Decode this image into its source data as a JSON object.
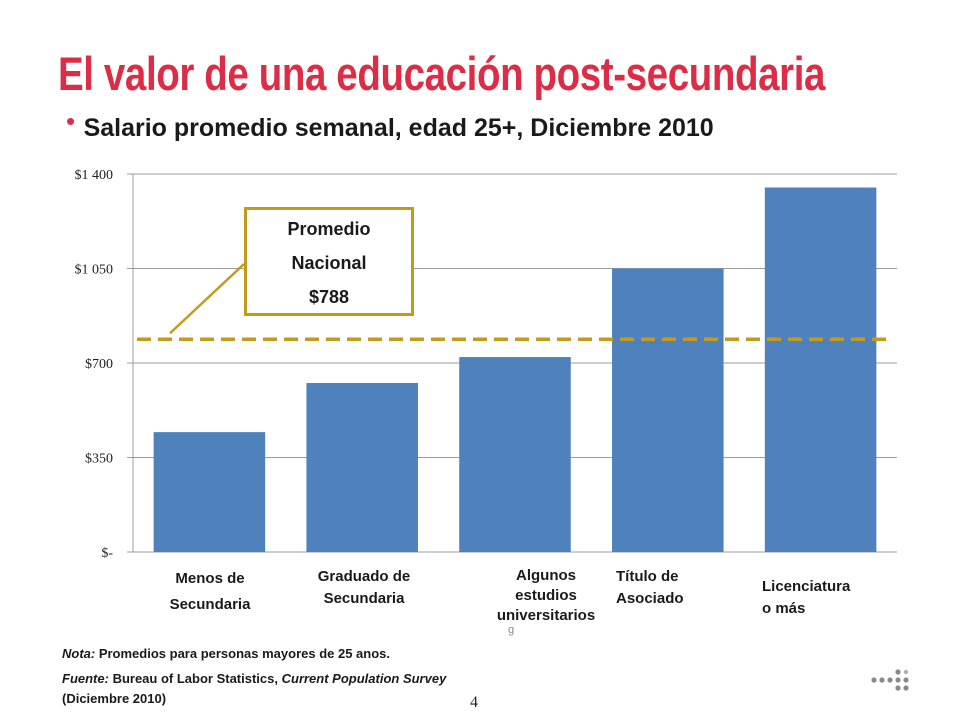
{
  "slide": {
    "title": "El valor de una educación post-secundaria",
    "subtitle": "Salario promedio semanal, edad 25+, Diciembre 2010",
    "note_prefix": "Nota:",
    "note_text": "  Promedios para  personas mayores de 25 anos.",
    "source_prefix": "Fuente:",
    "source_text_1": " Bureau of Labor Statistics, ",
    "source_italic": "Current Population Survey",
    "source_text_2": "(Diciembre 2010)",
    "page_number": "4",
    "stray_mark": "g"
  },
  "callout": {
    "line1": "Promedio",
    "line2": "Nacional",
    "line3": "$788"
  },
  "chart_data": {
    "type": "bar",
    "title": "",
    "xlabel": "",
    "ylabel": "",
    "categories": [
      "Menos de\nSecundaria",
      "Graduado de\nSecundaria",
      "Algunos\nestudios\nuniversitarios",
      "Título de\nAsociado",
      "Licenciatura\no más"
    ],
    "values": [
      444,
      626,
      722,
      1050,
      1350
    ],
    "ylim": [
      0,
      1400
    ],
    "yticks": [
      0,
      350,
      700,
      1050,
      1400
    ],
    "ytick_labels": [
      "$-",
      "$350",
      "$700",
      "$1 050",
      "$1 400"
    ],
    "reference_line": {
      "value": 788,
      "style": "dashed",
      "color": "#c49a1c"
    },
    "grid": true,
    "bar_color": "#4f81bd"
  }
}
